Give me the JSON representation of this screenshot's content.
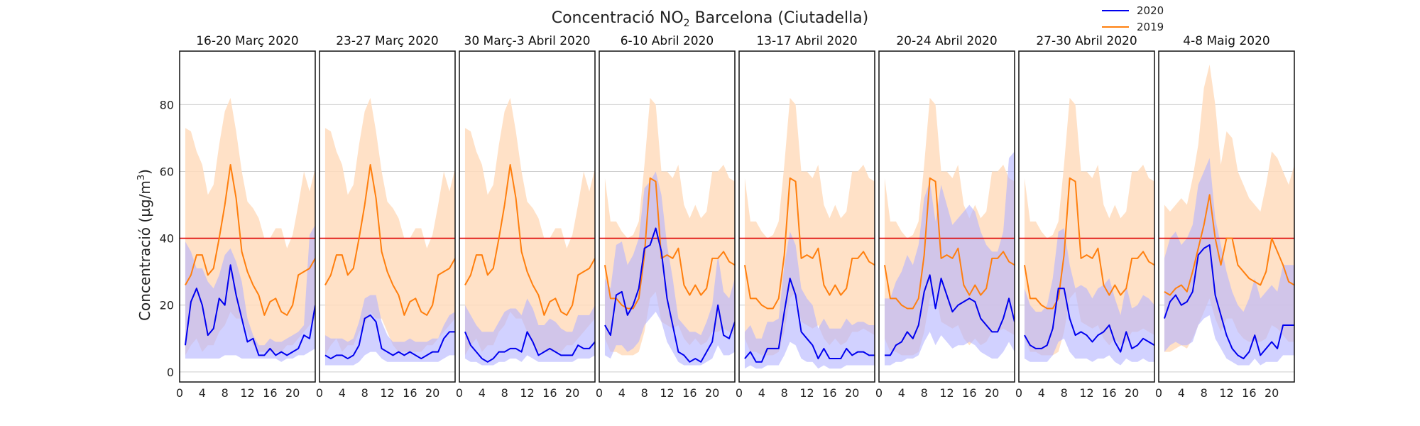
{
  "chart_data": {
    "type": "line",
    "title": "Concentració NO",
    "title_sub": "2",
    "title_rest": " Barcelona (Ciutadella)",
    "ylabel": "Concentració (µg/m",
    "ylabel_sup": "3",
    "ylabel_end": ")",
    "xticks": [
      "0",
      "4",
      "8",
      "12",
      "16",
      "20"
    ],
    "yticks": [
      "0",
      "20",
      "40",
      "60",
      "80"
    ],
    "xlim": [
      0,
      24
    ],
    "ylim": [
      -3,
      96
    ],
    "limit_value": 40,
    "colors": {
      "s2020": "#0000ee",
      "s2019": "#ff7f0e",
      "band2020": "#b3b3ff",
      "band2019": "#ffdcbd",
      "limit": "#dd0000"
    },
    "legend": [
      {
        "name": "2020",
        "color": "#0000ee"
      },
      {
        "name": "2019",
        "color": "#ff7f0e"
      }
    ],
    "hours": [
      1,
      2,
      3,
      4,
      5,
      6,
      7,
      8,
      9,
      10,
      11,
      12,
      13,
      14,
      15,
      16,
      17,
      18,
      19,
      20,
      21,
      22,
      23,
      24
    ],
    "panels": [
      {
        "title": "16-20 Març 2020",
        "s2020": [
          8,
          21,
          25,
          20,
          11,
          13,
          22,
          20,
          32,
          23,
          16,
          9,
          10,
          5,
          5,
          7,
          5,
          6,
          5,
          6,
          7,
          11,
          10,
          20
        ],
        "s2019": [
          26,
          29,
          35,
          35,
          29,
          31,
          40,
          50,
          62,
          52,
          36,
          30,
          26,
          23,
          17,
          21,
          22,
          18,
          17,
          20,
          29,
          30,
          31,
          34
        ],
        "b2020_low": [
          4,
          4,
          4,
          4,
          4,
          4,
          4,
          5,
          5,
          5,
          4,
          4,
          4,
          4,
          4,
          4,
          4,
          3,
          4,
          4,
          5,
          5,
          6,
          7
        ],
        "b2020_high": [
          39,
          36,
          31,
          31,
          27,
          25,
          29,
          35,
          37,
          33,
          27,
          16,
          11,
          8,
          8,
          10,
          9,
          9,
          10,
          11,
          12,
          14,
          41,
          44
        ],
        "b2019_low": [
          5,
          8,
          10,
          6,
          8,
          8,
          12,
          14,
          18,
          16,
          16,
          12,
          8,
          6,
          6,
          6,
          6,
          6,
          8,
          8,
          10,
          12,
          14,
          16
        ],
        "b2019_high": [
          73,
          72,
          66,
          62,
          53,
          56,
          68,
          78,
          82,
          72,
          60,
          51,
          49,
          46,
          40,
          40,
          43,
          43,
          37,
          41,
          50,
          60,
          54,
          61
        ]
      },
      {
        "title": "23-27 Març 2020",
        "s2020": [
          5,
          4,
          5,
          5,
          4,
          5,
          8,
          16,
          17,
          15,
          7,
          6,
          5,
          6,
          5,
          6,
          5,
          4,
          5,
          6,
          6,
          10,
          12,
          12
        ],
        "s2019": [
          26,
          29,
          35,
          35,
          29,
          31,
          40,
          50,
          62,
          52,
          36,
          30,
          26,
          23,
          17,
          21,
          22,
          18,
          17,
          20,
          29,
          30,
          31,
          34
        ],
        "b2020_low": [
          2,
          2,
          2,
          2,
          2,
          2,
          3,
          5,
          6,
          6,
          4,
          3,
          3,
          3,
          3,
          3,
          3,
          3,
          3,
          3,
          3,
          4,
          5,
          5
        ],
        "b2020_high": [
          11,
          10,
          10,
          10,
          9,
          10,
          15,
          22,
          23,
          23,
          15,
          11,
          9,
          9,
          9,
          10,
          9,
          9,
          9,
          10,
          10,
          14,
          17,
          18
        ],
        "b2019_low": [
          5,
          8,
          10,
          6,
          8,
          8,
          12,
          14,
          18,
          16,
          16,
          12,
          8,
          6,
          6,
          6,
          6,
          6,
          8,
          8,
          10,
          12,
          14,
          16
        ],
        "b2019_high": [
          73,
          72,
          66,
          62,
          53,
          56,
          68,
          78,
          82,
          72,
          60,
          51,
          49,
          46,
          40,
          40,
          43,
          43,
          37,
          41,
          50,
          60,
          54,
          61
        ]
      },
      {
        "title": "30 Març-3 Abril 2020",
        "s2020": [
          12,
          8,
          6,
          4,
          3,
          4,
          6,
          6,
          7,
          7,
          6,
          12,
          9,
          5,
          6,
          7,
          6,
          5,
          5,
          5,
          8,
          7,
          7,
          9
        ],
        "s2019": [
          26,
          29,
          35,
          35,
          29,
          31,
          40,
          50,
          62,
          52,
          36,
          30,
          26,
          23,
          17,
          21,
          22,
          18,
          17,
          20,
          29,
          30,
          31,
          34
        ],
        "b2020_low": [
          4,
          3,
          3,
          2,
          2,
          2,
          3,
          3,
          4,
          4,
          3,
          5,
          4,
          3,
          3,
          3,
          3,
          3,
          3,
          3,
          4,
          4,
          4,
          5
        ],
        "b2020_high": [
          20,
          17,
          14,
          12,
          12,
          12,
          15,
          18,
          19,
          19,
          17,
          22,
          19,
          14,
          14,
          16,
          15,
          13,
          12,
          12,
          17,
          17,
          17,
          20
        ],
        "b2019_low": [
          5,
          8,
          10,
          6,
          8,
          8,
          12,
          14,
          18,
          16,
          16,
          12,
          8,
          6,
          6,
          6,
          6,
          6,
          8,
          8,
          10,
          12,
          14,
          16
        ],
        "b2019_high": [
          73,
          72,
          66,
          62,
          53,
          56,
          68,
          78,
          82,
          72,
          60,
          51,
          49,
          46,
          40,
          40,
          43,
          43,
          37,
          41,
          50,
          60,
          54,
          61
        ]
      },
      {
        "title": "6-10 Abril 2020",
        "s2020": [
          14,
          11,
          23,
          24,
          17,
          20,
          25,
          37,
          38,
          43,
          36,
          22,
          14,
          6,
          5,
          3,
          4,
          3,
          6,
          9,
          20,
          11,
          10,
          15
        ],
        "s2019": [
          32,
          22,
          22,
          20,
          19,
          19,
          22,
          35,
          58,
          57,
          34,
          35,
          34,
          37,
          26,
          23,
          26,
          23,
          25,
          34,
          34,
          36,
          33,
          32
        ],
        "b2020_low": [
          5,
          4,
          8,
          8,
          6,
          7,
          9,
          14,
          16,
          18,
          15,
          9,
          6,
          3,
          2,
          2,
          2,
          2,
          3,
          4,
          8,
          5,
          5,
          6
        ],
        "b2020_high": [
          28,
          25,
          38,
          39,
          32,
          35,
          40,
          55,
          57,
          60,
          53,
          38,
          28,
          16,
          14,
          12,
          12,
          11,
          15,
          20,
          35,
          24,
          22,
          28
        ],
        "b2019_low": [
          10,
          6,
          6,
          5,
          5,
          5,
          6,
          12,
          22,
          24,
          15,
          14,
          13,
          14,
          10,
          8,
          10,
          8,
          9,
          12,
          12,
          13,
          12,
          11
        ],
        "b2019_high": [
          58,
          45,
          45,
          42,
          40,
          41,
          45,
          62,
          82,
          80,
          60,
          60,
          58,
          62,
          50,
          46,
          50,
          46,
          48,
          60,
          60,
          62,
          58,
          57
        ]
      },
      {
        "title": "13-17 Abril 2020",
        "s2020": [
          4,
          6,
          3,
          3,
          7,
          7,
          7,
          18,
          28,
          23,
          12,
          10,
          8,
          4,
          7,
          4,
          4,
          4,
          7,
          5,
          6,
          6,
          5,
          5
        ],
        "s2019": [
          32,
          22,
          22,
          20,
          19,
          19,
          22,
          35,
          58,
          57,
          34,
          35,
          34,
          37,
          26,
          23,
          26,
          23,
          25,
          34,
          34,
          36,
          33,
          32
        ],
        "b2020_low": [
          1,
          2,
          1,
          1,
          2,
          2,
          2,
          5,
          9,
          8,
          4,
          3,
          3,
          1,
          2,
          1,
          1,
          1,
          2,
          2,
          2,
          2,
          2,
          2
        ],
        "b2020_high": [
          12,
          14,
          10,
          10,
          15,
          15,
          16,
          32,
          42,
          38,
          25,
          22,
          20,
          13,
          16,
          13,
          13,
          13,
          16,
          14,
          15,
          15,
          14,
          14
        ],
        "b2019_low": [
          10,
          6,
          6,
          5,
          5,
          5,
          6,
          12,
          22,
          24,
          15,
          14,
          13,
          14,
          10,
          8,
          10,
          8,
          9,
          12,
          12,
          13,
          12,
          11
        ],
        "b2019_high": [
          58,
          45,
          45,
          42,
          40,
          41,
          45,
          62,
          82,
          80,
          60,
          60,
          58,
          62,
          50,
          46,
          50,
          46,
          48,
          60,
          60,
          62,
          58,
          57
        ]
      },
      {
        "title": "20-24 Abril 2020",
        "s2020": [
          5,
          5,
          8,
          9,
          12,
          10,
          14,
          24,
          29,
          19,
          28,
          23,
          18,
          20,
          21,
          22,
          21,
          16,
          14,
          12,
          12,
          16,
          22,
          15
        ],
        "s2019": [
          32,
          22,
          22,
          20,
          19,
          19,
          22,
          35,
          58,
          57,
          34,
          35,
          34,
          37,
          26,
          23,
          26,
          23,
          25,
          34,
          34,
          36,
          33,
          32
        ],
        "b2020_low": [
          2,
          2,
          3,
          3,
          4,
          4,
          5,
          9,
          12,
          8,
          11,
          9,
          7,
          8,
          8,
          9,
          8,
          6,
          5,
          4,
          4,
          6,
          9,
          6
        ],
        "b2020_high": [
          22,
          22,
          27,
          30,
          35,
          32,
          38,
          52,
          57,
          45,
          56,
          50,
          44,
          46,
          48,
          50,
          48,
          42,
          38,
          36,
          36,
          42,
          64,
          66
        ],
        "b2019_low": [
          10,
          6,
          6,
          5,
          5,
          5,
          6,
          12,
          22,
          24,
          15,
          14,
          13,
          14,
          10,
          8,
          10,
          8,
          9,
          12,
          12,
          13,
          12,
          11
        ],
        "b2019_high": [
          58,
          45,
          45,
          42,
          40,
          41,
          45,
          62,
          82,
          80,
          60,
          60,
          58,
          62,
          50,
          46,
          50,
          46,
          48,
          60,
          60,
          62,
          58,
          57
        ]
      },
      {
        "title": "27-30 Abril 2020",
        "s2020": [
          11,
          8,
          7,
          7,
          8,
          13,
          25,
          25,
          16,
          11,
          12,
          11,
          9,
          11,
          12,
          14,
          9,
          6,
          12,
          7,
          8,
          10,
          9,
          8
        ],
        "s2019": [
          32,
          22,
          22,
          20,
          19,
          19,
          22,
          35,
          58,
          57,
          34,
          35,
          34,
          37,
          26,
          23,
          26,
          23,
          25,
          34,
          34,
          36,
          33,
          32
        ],
        "b2020_low": [
          4,
          3,
          3,
          3,
          3,
          5,
          9,
          10,
          6,
          4,
          4,
          4,
          3,
          4,
          4,
          5,
          3,
          2,
          4,
          3,
          3,
          4,
          3,
          3
        ],
        "b2020_high": [
          25,
          20,
          18,
          18,
          20,
          28,
          42,
          43,
          32,
          25,
          26,
          25,
          22,
          25,
          26,
          28,
          22,
          17,
          26,
          19,
          20,
          23,
          22,
          20
        ],
        "b2019_low": [
          10,
          6,
          6,
          5,
          5,
          5,
          6,
          12,
          22,
          24,
          15,
          14,
          13,
          14,
          10,
          8,
          10,
          8,
          9,
          12,
          12,
          13,
          12,
          11
        ],
        "b2019_high": [
          58,
          45,
          45,
          42,
          40,
          41,
          45,
          62,
          82,
          80,
          60,
          60,
          58,
          62,
          50,
          46,
          50,
          46,
          48,
          60,
          60,
          62,
          58,
          57
        ]
      },
      {
        "title": "4-8 Maig 2020",
        "s2020": [
          16,
          21,
          23,
          20,
          21,
          24,
          35,
          37,
          38,
          23,
          17,
          11,
          7,
          5,
          4,
          6,
          11,
          5,
          7,
          9,
          7,
          14,
          14,
          14
        ],
        "s2019": [
          24,
          23,
          25,
          26,
          24,
          30,
          37,
          44,
          53,
          40,
          32,
          40,
          40,
          32,
          30,
          28,
          27,
          26,
          30,
          40,
          36,
          32,
          27,
          26
        ],
        "b2020_low": [
          6,
          8,
          9,
          8,
          8,
          9,
          14,
          16,
          17,
          10,
          7,
          4,
          3,
          2,
          2,
          2,
          4,
          2,
          3,
          3,
          3,
          5,
          5,
          5
        ],
        "b2020_high": [
          34,
          40,
          42,
          38,
          40,
          44,
          56,
          60,
          64,
          46,
          38,
          30,
          24,
          20,
          18,
          22,
          28,
          22,
          24,
          26,
          24,
          32,
          32,
          32
        ],
        "b2019_low": [
          6,
          6,
          7,
          8,
          7,
          10,
          14,
          18,
          22,
          16,
          12,
          16,
          16,
          12,
          10,
          9,
          9,
          9,
          10,
          14,
          13,
          11,
          9,
          9
        ],
        "b2019_high": [
          50,
          48,
          50,
          52,
          50,
          58,
          68,
          85,
          92,
          80,
          62,
          72,
          70,
          60,
          56,
          52,
          50,
          48,
          56,
          66,
          64,
          60,
          56,
          62
        ]
      }
    ]
  }
}
